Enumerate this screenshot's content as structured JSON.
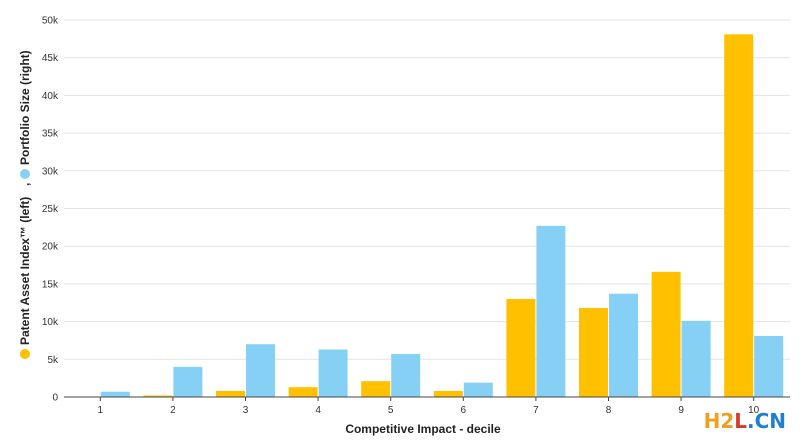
{
  "chart_data": {
    "type": "bar",
    "categories": [
      "1",
      "2",
      "3",
      "4",
      "5",
      "6",
      "7",
      "8",
      "9",
      "10"
    ],
    "series": [
      {
        "name": "Patent Asset Index™ (left)",
        "color": "#ffc000",
        "values": [
          0,
          200,
          800,
          1300,
          2100,
          800,
          13000,
          11800,
          16600,
          48100
        ]
      },
      {
        "name": "Portfolio Size (right)",
        "color": "#87d0f5",
        "values": [
          700,
          4000,
          7000,
          6300,
          5700,
          1900,
          22700,
          13700,
          10100,
          8100
        ]
      }
    ],
    "xlabel": "Competitive Impact - decile",
    "ylabel": "",
    "ylim": [
      0,
      50000
    ],
    "yticks": [
      "0",
      "5k",
      "10k",
      "15k",
      "20k",
      "25k",
      "30k",
      "35k",
      "40k",
      "45k",
      "50k"
    ],
    "grid": true,
    "legend_position": "left-vertical"
  },
  "legend_separator": ",",
  "watermark": {
    "part1": "H2",
    "part2": "L",
    "part3": ".CN"
  }
}
